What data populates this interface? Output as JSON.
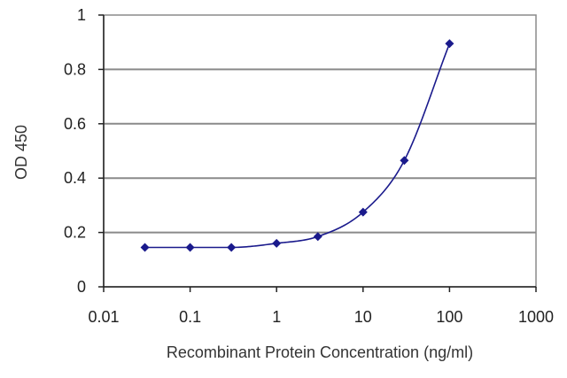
{
  "chart_data": {
    "type": "scatter",
    "xscale": "log",
    "xlim": [
      0.01,
      1000
    ],
    "ylim": [
      0,
      1
    ],
    "xticks": [
      0.01,
      0.1,
      1,
      10,
      100,
      1000
    ],
    "xtick_labels": [
      "0.01",
      "0.1",
      "1",
      "10",
      "100",
      "1000"
    ],
    "yticks": [
      0,
      0.2,
      0.4,
      0.6,
      0.8,
      1
    ],
    "ytick_labels": [
      "0",
      "0.2",
      "0.4",
      "0.6",
      "0.8",
      "1"
    ],
    "xlabel": "Recombinant Protein Concentration (ng/ml)",
    "ylabel": "OD 450",
    "grid": "horizontal",
    "fitted_curve": true,
    "series": [
      {
        "color": "#1a1a8c",
        "marker": "diamond",
        "x": [
          0.03,
          0.1,
          0.3,
          1,
          3,
          10,
          30,
          100
        ],
        "y": [
          0.145,
          0.145,
          0.145,
          0.16,
          0.185,
          0.275,
          0.465,
          0.895
        ]
      }
    ]
  }
}
